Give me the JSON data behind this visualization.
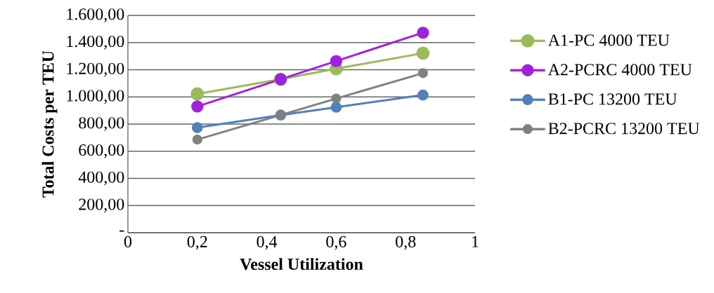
{
  "chart_data": {
    "type": "line",
    "xlabel": "Vessel Utilization",
    "ylabel": "Total Costs per TEU",
    "xlim": [
      0,
      1
    ],
    "xticks": [
      0,
      {
        "value": 0.2,
        "label": "0,2"
      },
      {
        "value": 0.4,
        "label": "0,4"
      },
      {
        "value": 0.6,
        "label": "0,6"
      },
      {
        "value": 0.8,
        "label": "0,8"
      },
      1
    ],
    "ylim": [
      0,
      1600
    ],
    "yticks": [
      {
        "value": 0,
        "label": "-"
      },
      {
        "value": 200,
        "label": "200,00"
      },
      {
        "value": 400,
        "label": "400,00"
      },
      {
        "value": 600,
        "label": "600,00"
      },
      {
        "value": 800,
        "label": "800,00"
      },
      {
        "value": 1000,
        "label": "1.000,00"
      },
      {
        "value": 1200,
        "label": "1.200,00"
      },
      {
        "value": 1400,
        "label": "1.400,00"
      },
      {
        "value": 1600,
        "label": "1.600,00"
      }
    ],
    "x": [
      0.2,
      0.44,
      0.6,
      0.85
    ],
    "grid": "y",
    "legend": "right",
    "marker": "circle",
    "series": [
      {
        "name": "A1-PC 4000 TEU",
        "color": "#9bbb59",
        "values": [
          1022,
          1130,
          1208,
          1322
        ]
      },
      {
        "name": "A2-PCRC 4000 TEU",
        "color": "#a020e0",
        "values": [
          930,
          1130,
          1264,
          1473
        ]
      },
      {
        "name": "B1-PC 13200 TEU",
        "color": "#4f81bd",
        "values": [
          774,
          866,
          924,
          1014
        ]
      },
      {
        "name": "B2-PCRC 13200 TEU",
        "color": "#808080",
        "values": [
          686,
          866,
          988,
          1175
        ]
      }
    ]
  }
}
